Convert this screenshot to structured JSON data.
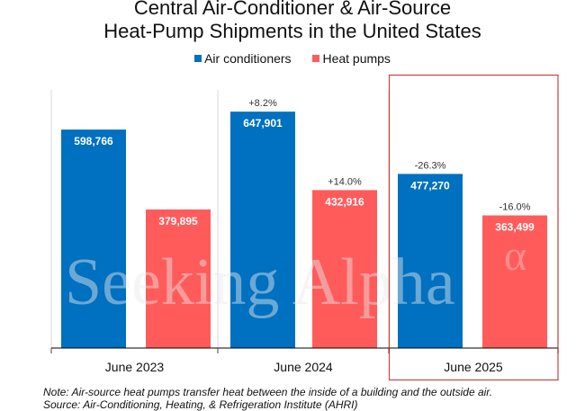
{
  "chart_data": {
    "type": "bar",
    "title_line1": "Central Air-Conditioner & Air-Source",
    "title_line2": "Heat-Pump Shipments in the United States",
    "categories": [
      "June 2023",
      "June 2024",
      "June 2025"
    ],
    "series": [
      {
        "name": "Air conditioners",
        "color": "#0070C0",
        "values": [
          598766,
          647901,
          477270
        ],
        "value_labels": [
          "598,766",
          "647,901",
          "477,270"
        ],
        "change_labels": [
          "",
          "+8.2%",
          "-26.3%"
        ]
      },
      {
        "name": "Heat pumps",
        "color": "#FF5B5B",
        "values": [
          379895,
          432916,
          363499
        ],
        "value_labels": [
          "379,895",
          "432,916",
          "363,499"
        ],
        "change_labels": [
          "",
          "+14.0%",
          "-16.0%"
        ]
      }
    ],
    "ylim": [
      0,
      700000
    ],
    "highlighted_category": "June 2025",
    "highlight_color": "#C00000",
    "legend": "top",
    "grid": false,
    "xlabel": "",
    "ylabel": ""
  },
  "watermark": "Seeking Alpha",
  "watermark_symbol": "α",
  "note": "Note: Air-source heat pumps transfer heat between the inside of a building and the outside air.",
  "source": "Source: Air-Conditioning, Heating, & Refrigeration Institute (AHRI)"
}
